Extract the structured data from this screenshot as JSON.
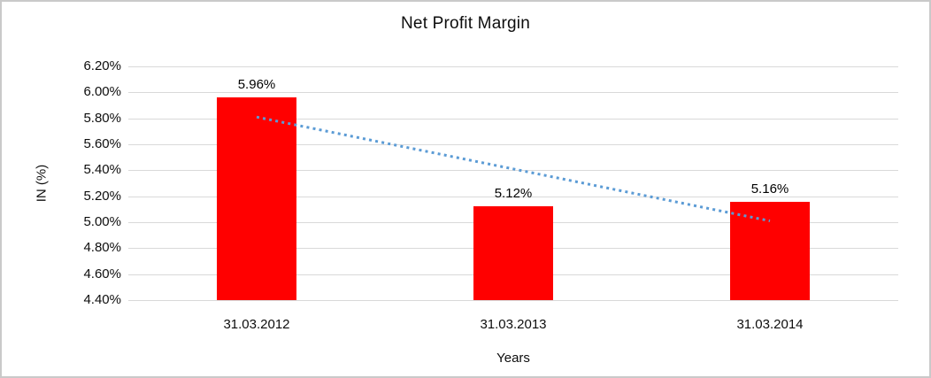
{
  "chart_data": {
    "type": "bar",
    "title": "Net Profit Margin",
    "xlabel": "Years",
    "ylabel": "IN (%)",
    "categories": [
      "31.03.2012",
      "31.03.2013",
      "31.03.2014"
    ],
    "values": [
      5.96,
      5.12,
      5.16
    ],
    "bar_labels": [
      "5.96%",
      "5.12%",
      "5.16%"
    ],
    "y_ticks": [
      "6.20%",
      "6.00%",
      "5.80%",
      "5.60%",
      "5.40%",
      "5.20%",
      "5.00%",
      "4.80%",
      "4.60%",
      "4.40%"
    ],
    "ylim": [
      4.4,
      6.2
    ],
    "grid": true,
    "legend": "none",
    "bar_color": "#ff0000",
    "gridline_color": "#d9d9d9",
    "text_color": "#0d0d0d",
    "trendline": {
      "style": "dotted",
      "color": "#5b9bd5",
      "start_value": 5.81,
      "end_value": 5.01
    }
  }
}
